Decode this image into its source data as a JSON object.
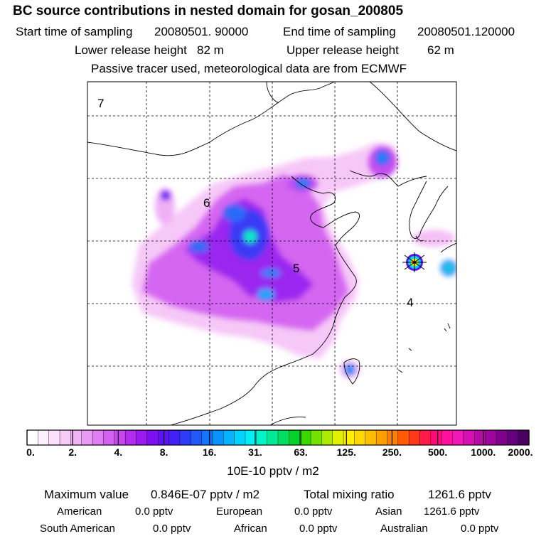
{
  "header": {
    "title": "BC  source contributions in nested domain for gosan_200805",
    "start_label": "Start time of sampling",
    "start_value": "20080501. 90000",
    "end_label": "End time of sampling",
    "end_value": "20080501.120000",
    "lower_label": "Lower release height",
    "lower_value": "82 m",
    "upper_label": "Upper release height",
    "upper_value": "62 m",
    "note": "Passive tracer used, meteorological data are from ECMWF"
  },
  "map": {
    "region_labels": [
      "7",
      "6",
      "5",
      "4"
    ],
    "receptor_marker": "star-marker"
  },
  "colorbar": {
    "tick_labels": [
      "0.",
      "2.",
      "4.",
      "8.",
      "16.",
      "31.",
      "63.",
      "125.",
      "250.",
      "500.",
      "1000.",
      "2000."
    ],
    "unit": "10E-10 pptv / m2",
    "colors": [
      "#ffffff",
      "#fdf0fd",
      "#fae0fb",
      "#f6cbf8",
      "#f0b4f6",
      "#e89af4",
      "#df7ef2",
      "#d462f0",
      "#c746ef",
      "#b32cee",
      "#9a1aef",
      "#7d10f1",
      "#5f12f3",
      "#4320f5",
      "#2f3cf7",
      "#2159f9",
      "#1575fa",
      "#0b92fb",
      "#05b2fc",
      "#00d4fd",
      "#00f0f5",
      "#00f5c8",
      "#00ea95",
      "#00dd62",
      "#05d02c",
      "#38d800",
      "#72e200",
      "#acea00",
      "#dff000",
      "#fff000",
      "#ffd800",
      "#ffbe00",
      "#ffa000",
      "#ff7f00",
      "#ff5a00",
      "#ff3a1a",
      "#ff1a4a",
      "#ff0a78",
      "#ff12a0",
      "#f018b8",
      "#d410b4",
      "#b80aa8",
      "#9c069c",
      "#80028c",
      "#660080",
      "#4c0060"
    ]
  },
  "stats": {
    "max_label": "Maximum value",
    "max_value": "0.846E-07 pptv / m2",
    "total_label": "Total mixing ratio",
    "total_value": "1261.6 pptv",
    "regions": [
      {
        "name": "American",
        "value": "0.0 pptv"
      },
      {
        "name": "European",
        "value": "0.0 pptv"
      },
      {
        "name": "Asian",
        "value": "1261.6 pptv"
      },
      {
        "name": "South American",
        "value": "0.0 pptv"
      },
      {
        "name": "African",
        "value": "0.0 pptv"
      },
      {
        "name": "Australian",
        "value": "0.0 pptv"
      }
    ]
  }
}
